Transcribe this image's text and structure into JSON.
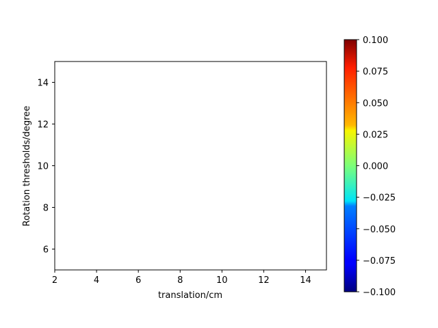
{
  "chart_data": {
    "type": "heatmap",
    "title": "",
    "xlabel": "translation/cm",
    "ylabel": "Rotation thresholds/degree",
    "xlim": [
      2,
      15
    ],
    "ylim": [
      5,
      15
    ],
    "x_ticks": [
      2,
      4,
      6,
      8,
      10,
      12,
      14
    ],
    "y_ticks": [
      6,
      8,
      10,
      12,
      14
    ],
    "values": [],
    "grid": false,
    "colorbar": {
      "colormap": "jet",
      "range": [
        -0.1,
        0.1
      ],
      "ticks": [
        "0.100",
        "0.075",
        "0.050",
        "0.025",
        "0.000",
        "−0.025",
        "−0.050",
        "−0.075",
        "−0.100"
      ],
      "tick_values": [
        0.1,
        0.075,
        0.05,
        0.025,
        0,
        -0.025,
        -0.05,
        -0.075,
        -0.1
      ]
    }
  }
}
